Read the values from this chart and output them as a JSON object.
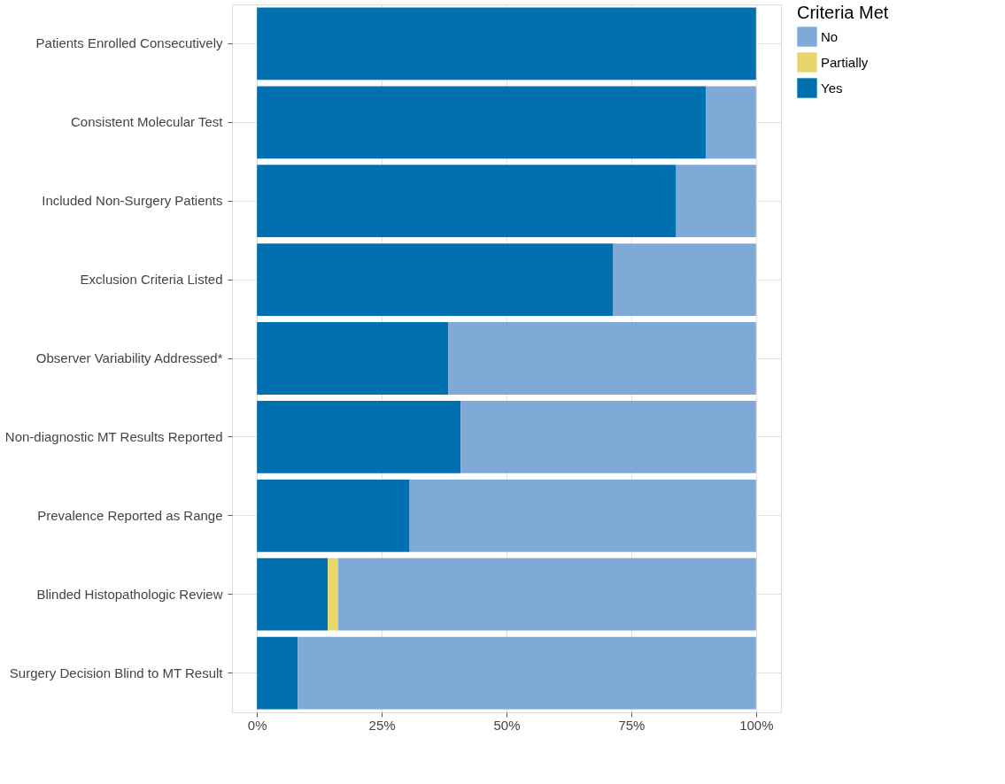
{
  "chart_data": {
    "type": "bar",
    "orientation": "horizontal",
    "stacked": true,
    "categories": [
      "Patients Enrolled Consecutively",
      "Consistent Molecular Test",
      "Included Non-Surgery Patients",
      "Exclusion Criteria Listed",
      "Observer Variability Addressed*",
      "Non-diagnostic MT Results Reported",
      "Prevalence Reported as Range",
      "Blinded Histopathologic Review",
      "Surgery Decision Blind to MT Result"
    ],
    "series": [
      {
        "name": "Yes",
        "color": "#0070b0",
        "values": [
          100,
          90,
          84,
          71.4,
          38.3,
          40.8,
          30.6,
          14.2,
          8.2
        ]
      },
      {
        "name": "Partially",
        "color": "#e8d66b",
        "values": [
          0,
          0,
          0,
          0,
          0,
          0,
          0,
          2.1,
          0
        ]
      },
      {
        "name": "No",
        "color": "#7fa9d6",
        "values": [
          0,
          10,
          16,
          28.6,
          61.7,
          59.2,
          69.4,
          83.7,
          91.8
        ]
      }
    ],
    "xlim": [
      -5,
      105
    ],
    "xticks": [
      {
        "value": 0,
        "label": "0%"
      },
      {
        "value": 25,
        "label": "25%"
      },
      {
        "value": 50,
        "label": "50%"
      },
      {
        "value": 75,
        "label": "75%"
      },
      {
        "value": 100,
        "label": "100%"
      }
    ],
    "legend_title": "Criteria Met",
    "legend": "right",
    "grid": true
  }
}
